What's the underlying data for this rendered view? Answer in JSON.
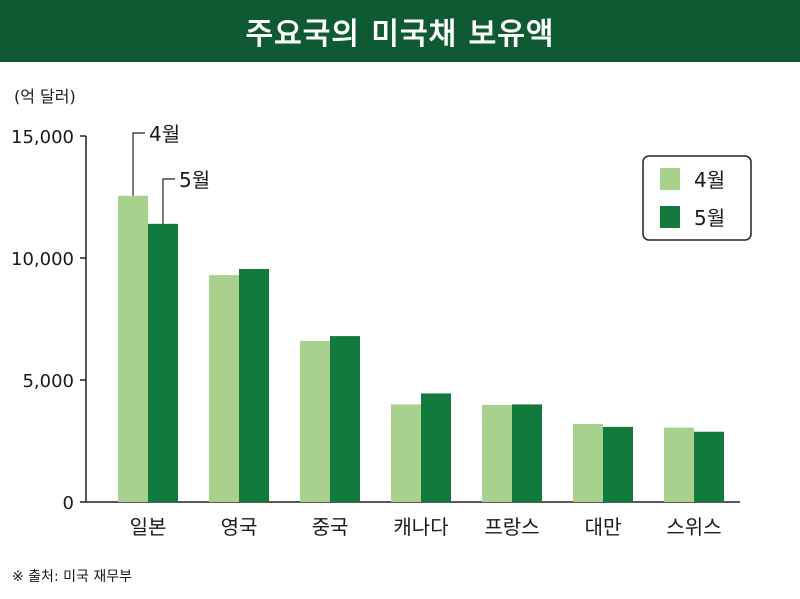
{
  "title": "주요국의 미국채 보유액",
  "source": "※ 출처: 미국 재무부",
  "chart_data": {
    "type": "bar",
    "title": "주요국의 미국채 보유액",
    "ylabel": "(억 달러)",
    "ylim": [
      0,
      15000
    ],
    "yticks": [
      "0",
      "5,000",
      "10,000",
      "15,000"
    ],
    "ytick_values": [
      0,
      5000,
      10000,
      15000
    ],
    "categories": [
      "일본",
      "영국",
      "중국",
      "캐나다",
      "프랑스",
      "대만",
      "스위스"
    ],
    "series": [
      {
        "name": "4월",
        "color": "#a9d18e",
        "values": [
          12550,
          9300,
          6600,
          4000,
          3980,
          3200,
          3050
        ]
      },
      {
        "name": "5월",
        "color": "#137a3e",
        "values": [
          11400,
          9550,
          6800,
          4450,
          4000,
          3080,
          2880
        ]
      }
    ],
    "annotations": [
      "4월",
      "5월"
    ],
    "legend": "top-right",
    "grid": false
  }
}
